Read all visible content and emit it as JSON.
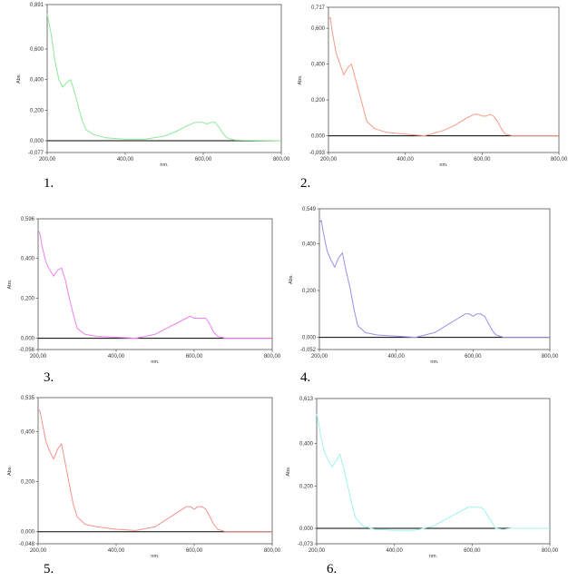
{
  "chart_data": [
    {
      "panel_label": "1.",
      "type": "line",
      "xlabel": "nm.",
      "ylabel": "Abs.",
      "xlim": [
        200,
        800
      ],
      "ylim": [
        -0.077,
        0.891
      ],
      "x_ticks": [
        "200,00",
        "400,00",
        "600,00",
        "800,00"
      ],
      "y_ticks": [
        "0,891",
        "0,600",
        "0,400",
        "0,200",
        "0,000",
        "-0,077"
      ],
      "color": "#8fe89a",
      "x": [
        200,
        210,
        220,
        230,
        240,
        250,
        260,
        270,
        280,
        290,
        300,
        320,
        350,
        400,
        450,
        500,
        530,
        560,
        580,
        590,
        600,
        610,
        620,
        630,
        640,
        650,
        660,
        680,
        700,
        800
      ],
      "y": [
        0.83,
        0.7,
        0.52,
        0.4,
        0.35,
        0.38,
        0.4,
        0.32,
        0.22,
        0.13,
        0.07,
        0.04,
        0.02,
        0.01,
        0.01,
        0.03,
        0.06,
        0.1,
        0.12,
        0.12,
        0.12,
        0.11,
        0.12,
        0.12,
        0.09,
        0.05,
        0.02,
        0.005,
        0.003,
        0.0
      ]
    },
    {
      "panel_label": "2.",
      "type": "line",
      "xlabel": "nm.",
      "ylabel": "Abs.",
      "xlim": [
        200,
        800
      ],
      "ylim": [
        -0.093,
        0.717
      ],
      "x_ticks": [
        "200,00",
        "400,00",
        "600,00",
        "800,00"
      ],
      "y_ticks": [
        "0,717",
        "0,600",
        "0,400",
        "0,200",
        "0,000",
        "-0,093"
      ],
      "color": "#f49b86",
      "x": [
        200,
        205,
        210,
        220,
        230,
        240,
        250,
        260,
        270,
        280,
        290,
        300,
        320,
        350,
        400,
        450,
        500,
        530,
        560,
        580,
        590,
        600,
        610,
        620,
        630,
        640,
        650,
        660,
        680,
        700,
        800
      ],
      "y": [
        0.65,
        0.66,
        0.58,
        0.46,
        0.4,
        0.34,
        0.38,
        0.4,
        0.32,
        0.24,
        0.16,
        0.08,
        0.04,
        0.02,
        0.01,
        0.0,
        0.03,
        0.06,
        0.1,
        0.12,
        0.12,
        0.11,
        0.11,
        0.12,
        0.11,
        0.08,
        0.04,
        0.01,
        0.0,
        0.0,
        0.0
      ]
    },
    {
      "panel_label": "3.",
      "type": "line",
      "xlabel": "nm.",
      "ylabel": "Abs.",
      "xlim": [
        200,
        800
      ],
      "ylim": [
        -0.056,
        0.596
      ],
      "x_ticks": [
        "200,00",
        "400,00",
        "600,00",
        "800,00"
      ],
      "y_ticks": [
        "0,596",
        "0,400",
        "0,200",
        "0,000",
        "-0,056"
      ],
      "color": "#ee82ee",
      "x": [
        200,
        205,
        210,
        220,
        230,
        240,
        250,
        260,
        270,
        280,
        290,
        300,
        320,
        350,
        400,
        450,
        500,
        530,
        560,
        580,
        590,
        600,
        610,
        620,
        630,
        640,
        650,
        660,
        680,
        700,
        800
      ],
      "y": [
        0.54,
        0.52,
        0.46,
        0.38,
        0.34,
        0.31,
        0.34,
        0.35,
        0.29,
        0.2,
        0.12,
        0.05,
        0.02,
        0.01,
        0.005,
        0.0,
        0.02,
        0.05,
        0.08,
        0.1,
        0.11,
        0.1,
        0.1,
        0.1,
        0.1,
        0.07,
        0.03,
        0.01,
        0.0,
        0.0,
        0.0
      ]
    },
    {
      "panel_label": "4.",
      "type": "line",
      "xlabel": "nm.",
      "ylabel": "Abs.",
      "xlim": [
        200,
        800
      ],
      "ylim": [
        -0.052,
        0.549
      ],
      "x_ticks": [
        "200,00",
        "400,00",
        "600,00",
        "800,00"
      ],
      "y_ticks": [
        "0,549",
        "0,400",
        "0,200",
        "0,000",
        "-0,052"
      ],
      "color": "#9a8ee8",
      "x": [
        200,
        205,
        210,
        220,
        230,
        240,
        250,
        260,
        270,
        280,
        290,
        300,
        320,
        350,
        400,
        450,
        500,
        530,
        560,
        580,
        590,
        600,
        610,
        620,
        630,
        640,
        650,
        660,
        680,
        700,
        800
      ],
      "y": [
        0.49,
        0.5,
        0.45,
        0.37,
        0.33,
        0.3,
        0.34,
        0.36,
        0.28,
        0.21,
        0.12,
        0.05,
        0.02,
        0.01,
        0.005,
        0.0,
        0.02,
        0.05,
        0.08,
        0.1,
        0.1,
        0.09,
        0.1,
        0.1,
        0.09,
        0.06,
        0.03,
        0.01,
        0.0,
        0.0,
        0.0
      ]
    },
    {
      "panel_label": "5.",
      "type": "line",
      "xlabel": "nm.",
      "ylabel": "Abs.",
      "xlim": [
        200,
        800
      ],
      "ylim": [
        -0.048,
        0.535
      ],
      "x_ticks": [
        "200,00",
        "400,00",
        "600,00",
        "800,00"
      ],
      "y_ticks": [
        "0,535",
        "0,400",
        "0,200",
        "0,000",
        "-0,048"
      ],
      "color": "#f4928e",
      "x": [
        200,
        205,
        210,
        220,
        230,
        240,
        250,
        260,
        270,
        280,
        290,
        300,
        320,
        350,
        400,
        450,
        500,
        530,
        560,
        580,
        590,
        600,
        610,
        620,
        630,
        640,
        650,
        660,
        680,
        700,
        800
      ],
      "y": [
        0.49,
        0.48,
        0.44,
        0.36,
        0.32,
        0.29,
        0.33,
        0.35,
        0.27,
        0.19,
        0.11,
        0.06,
        0.03,
        0.02,
        0.01,
        0.005,
        0.02,
        0.05,
        0.08,
        0.1,
        0.1,
        0.09,
        0.1,
        0.1,
        0.09,
        0.06,
        0.03,
        0.01,
        0.0,
        0.0,
        0.0
      ]
    },
    {
      "panel_label": "6.",
      "type": "line",
      "xlabel": "nm.",
      "ylabel": "Abs.",
      "xlim": [
        200,
        800
      ],
      "ylim": [
        -0.073,
        0.613
      ],
      "x_ticks": [
        "200,00",
        "400,00",
        "600,00",
        "800,00"
      ],
      "y_ticks": [
        "0,613",
        "0,400",
        "0,200",
        "0,000",
        "-0,073"
      ],
      "color": "#9ff2ef",
      "x": [
        200,
        205,
        210,
        220,
        230,
        240,
        250,
        260,
        270,
        280,
        290,
        300,
        320,
        350,
        400,
        450,
        500,
        530,
        560,
        580,
        590,
        600,
        610,
        620,
        630,
        640,
        650,
        660,
        680,
        700,
        800
      ],
      "y": [
        0.54,
        0.5,
        0.44,
        0.36,
        0.32,
        0.29,
        0.32,
        0.35,
        0.28,
        0.2,
        0.12,
        0.05,
        0.01,
        -0.005,
        -0.01,
        -0.01,
        0.01,
        0.04,
        0.07,
        0.09,
        0.1,
        0.1,
        0.1,
        0.1,
        0.09,
        0.06,
        0.03,
        0.0,
        -0.005,
        0.0,
        0.0
      ]
    }
  ]
}
